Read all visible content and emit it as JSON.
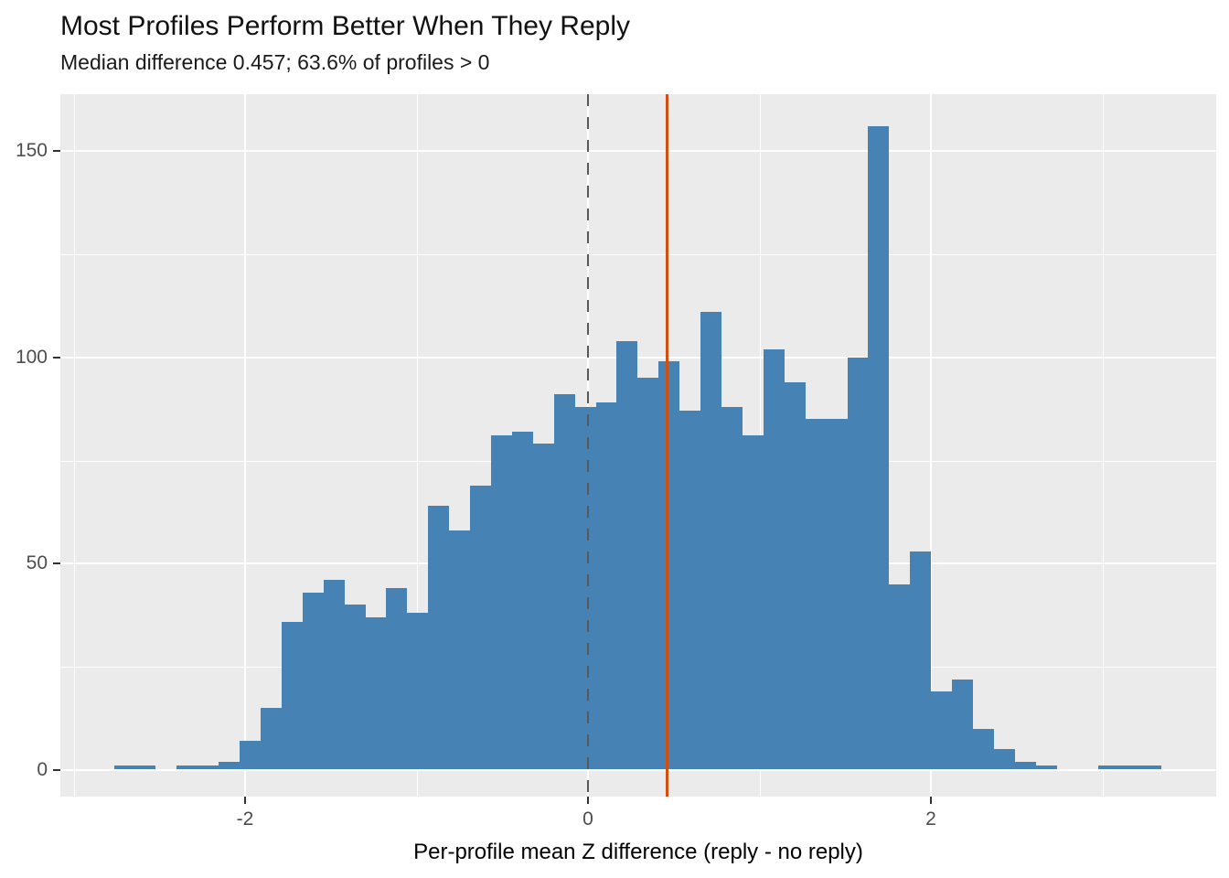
{
  "title": "Most Profiles Perform Better When They Reply",
  "subtitle": "Median difference 0.457; 63.6% of profiles > 0",
  "chart_data": {
    "type": "bar",
    "subtype": "histogram",
    "title": "Most Profiles Perform Better When They Reply",
    "subtitle": "Median difference 0.457; 63.6% of profiles > 0",
    "xlabel": "Per-profile mean Z difference (reply - no reply)",
    "ylabel": "",
    "bin_start": -2.765,
    "bin_width": 0.1222,
    "counts": [
      1,
      1,
      0,
      1,
      1,
      2,
      7,
      15,
      36,
      43,
      46,
      40,
      37,
      44,
      38,
      64,
      58,
      69,
      81,
      82,
      79,
      91,
      88,
      89,
      104,
      95,
      99,
      87,
      111,
      88,
      81,
      102,
      94,
      85,
      85,
      100,
      156,
      45,
      53,
      19,
      22,
      10,
      5,
      2,
      1,
      0,
      0,
      1,
      1,
      1
    ],
    "x_ticks": [
      -2,
      0,
      2
    ],
    "x_tick_labels": [
      "-2",
      "0",
      "2"
    ],
    "y_ticks": [
      0,
      50,
      100,
      150
    ],
    "y_tick_labels": [
      "0",
      "50",
      "100",
      "150"
    ],
    "x_minor_ticks": [
      -3,
      -1,
      1,
      3
    ],
    "y_minor_ticks": [
      25,
      75,
      125
    ],
    "xlim": [
      -3.08,
      3.66
    ],
    "ylim": [
      -6.4,
      163.7
    ],
    "grid": true,
    "legend": "none",
    "vlines": [
      {
        "x": 0,
        "style": "dashed",
        "color": "#595959",
        "meaning": "zero reference"
      },
      {
        "x": 0.457,
        "style": "solid",
        "color": "#D2500F",
        "meaning": "median difference"
      }
    ],
    "colors": {
      "bar": "#4682B4",
      "panel_background": "#EBEBEB",
      "gridline": "#FFFFFF",
      "tick_mark": "#333333",
      "tick_label": "#4D4D4D",
      "title_text": "#111111"
    }
  }
}
